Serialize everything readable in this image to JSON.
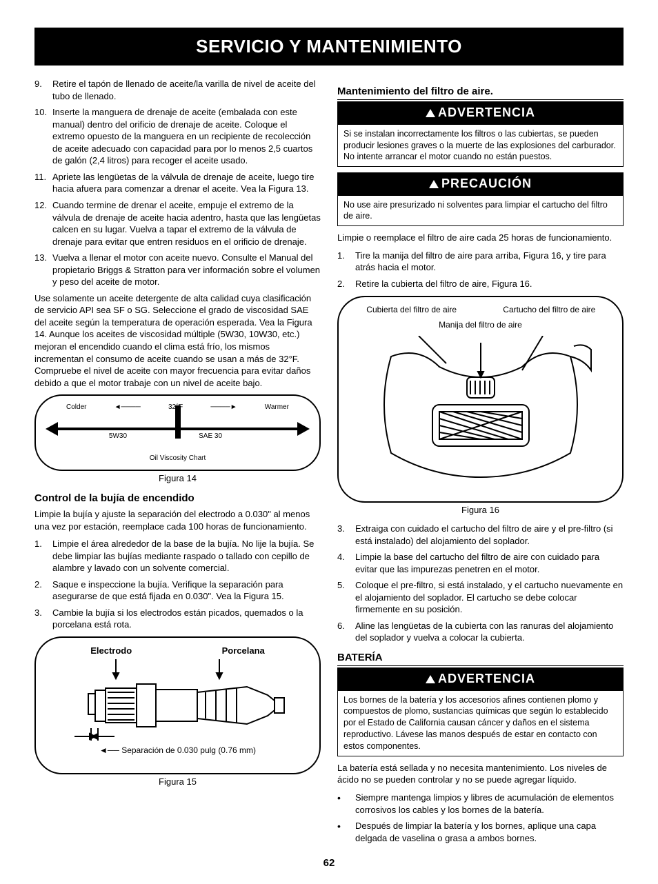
{
  "banner": "SERVICIO Y MANTENIMIENTO",
  "page_number": "62",
  "left": {
    "steps": [
      {
        "n": "9.",
        "t": "Retire el tapón de llenado de aceite/la varilla de nivel de aceite del tubo de llenado."
      },
      {
        "n": "10.",
        "t": "Inserte la manguera de drenaje de aceite (embalada con este manual) dentro del orificio de drenaje de aceite. Coloque el extremo opuesto de la manguera en un recipiente de recolección de aceite adecuado con capacidad para por lo menos 2,5 cuartos de galón (2,4 litros) para recoger el aceite usado."
      },
      {
        "n": "11.",
        "t": "Apriete las lengüetas de la válvula de drenaje de aceite, luego tire hacia afuera para comenzar a drenar el aceite. Vea la Figura 13."
      },
      {
        "n": "12.",
        "t": "Cuando termine de drenar el aceite, empuje el extremo de la válvula de drenaje de aceite hacia adentro, hasta que las lengüetas calcen en su lugar. Vuelva a tapar el extremo de la válvula de drenaje para evitar que entren residuos en el orificio de drenaje."
      },
      {
        "n": "13.",
        "t": "Vuelva a llenar el motor con aceite nuevo. Consulte el Manual del propietario Briggs & Stratton para ver información sobre el volumen y peso del aceite de motor."
      }
    ],
    "para1": "Use solamente un aceite detergente de alta calidad cuya clasificación de servicio API sea SF o SG. Seleccione el grado de viscosidad SAE del aceite según la temperatura de operación esperada. Vea la Figura 14. Aunque los aceites de viscosidad múltiple (5W30, 10W30, etc.) mejoran el encendido cuando el clima está frío, los mismos incrementan el consumo de aceite cuando se usan a más de 32°F. Compruebe el nivel de aceite con mayor frecuencia para evitar daños debido a que el motor trabaje con un nivel de aceite bajo.",
    "fig14": {
      "colder": "Colder",
      "center": "32°F",
      "warmer": "Warmer",
      "left_oil": "5W30",
      "right_oil": "SAE 30",
      "chart_label": "Oil Viscosity Chart",
      "caption": "Figura 14"
    },
    "spark_h": "Control de la bujía de encendido",
    "spark_intro": "Limpie la bujía y ajuste la separación del electrodo a 0.030\" al menos una vez por estación, reemplace cada 100 horas de funcionamiento.",
    "spark_steps": [
      {
        "n": "1.",
        "t": "Limpie el área alrededor de la base de la bujía. No lije la bujía. Se debe limpiar las bujías mediante raspado o tallado con cepillo de alambre y lavado con un solvente comercial."
      },
      {
        "n": "2.",
        "t": "Saque e inspeccione la bujía. Verifique la separación para asegurarse de que está fijada en 0.030\". Vea la Figura 15."
      },
      {
        "n": "3.",
        "t": "Cambie la bujía si los electrodos están picados, quemados o la porcelana está rota."
      }
    ],
    "fig15": {
      "electrode": "Electrodo",
      "porcelain": "Porcelana",
      "gap": "Separación de 0.030 pulg (0.76 mm)",
      "caption": "Figura 15"
    }
  },
  "right": {
    "air_h": "Mantenimiento del filtro de aire.",
    "adv": "ADVERTENCIA",
    "prec": "PRECAUCIÓN",
    "adv1_body": "Si se instalan incorrectamente los filtros o las cubiertas, se pueden producir lesiones graves o la muerte de las explosiones del carburador. No intente arrancar el motor cuando no están puestos.",
    "prec_body": "No use aire presurizado ni solventes para limpiar el cartucho del filtro de aire.",
    "air_intro": "Limpie o reemplace el filtro de aire cada 25 horas de funcionamiento.",
    "air_steps_a": [
      {
        "n": "1.",
        "t": "Tire la manija del filtro de aire para arriba, Figura 16, y tire para atrás hacia el motor."
      },
      {
        "n": "2.",
        "t": "Retire la cubierta del filtro de aire, Figura 16."
      }
    ],
    "fig16": {
      "cover": "Cubierta del filtro de aire",
      "cartridge": "Cartucho del filtro de aire",
      "handle": "Manija del filtro de aire",
      "caption": "Figura 16"
    },
    "air_steps_b": [
      {
        "n": "3.",
        "t": "Extraiga con cuidado el cartucho del filtro de aire y el pre-filtro (si está instalado) del alojamiento del soplador."
      },
      {
        "n": "4.",
        "t": "Limpie la base del cartucho del filtro de aire con cuidado para evitar que las impurezas penetren en el motor."
      },
      {
        "n": "5.",
        "t": "Coloque el pre-filtro, si está instalado, y el cartucho nuevamente en el alojamiento del soplador. El cartucho se debe colocar firmemente en su posición."
      },
      {
        "n": "6.",
        "t": "Aline las lengüetas de la cubierta con las ranuras del alojamiento del soplador y vuelva a colocar la cubierta."
      }
    ],
    "bat_h": "BATERÍA",
    "adv2_body": "Los bornes de la batería y los accesorios afines contienen plomo y compuestos de plomo, sustancias químicas que según lo establecido por el Estado de California causan cáncer y daños en el sistema reproductivo. Lávese las manos después de estar en contacto con estos componentes.",
    "bat_intro": "La batería está sellada y no necesita mantenimiento. Los niveles de ácido no se pueden controlar y no se puede agregar líquido.",
    "bat_bullets": [
      "Siempre mantenga limpios y libres de acumulación de elementos corrosivos los cables y los bornes de la batería.",
      "Después de limpiar la batería y los bornes, aplique una capa delgada de vaselina o grasa a ambos bornes."
    ]
  }
}
